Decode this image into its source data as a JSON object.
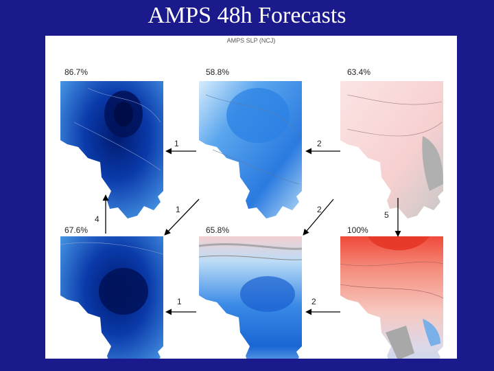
{
  "slide": {
    "title": "AMPS 48h Forecasts"
  },
  "panel": {
    "title": "AMPS SLP (NCJ)"
  },
  "maps": [
    {
      "id": "top-left",
      "percent": "86.7%",
      "palette": "blue"
    },
    {
      "id": "top-middle",
      "percent": "58.8%",
      "palette": "blue"
    },
    {
      "id": "top-right",
      "percent": "63.4%",
      "palette": "red"
    },
    {
      "id": "bottom-left",
      "percent": "67.6%",
      "palette": "blue"
    },
    {
      "id": "bottom-middle",
      "percent": "65.8%",
      "palette": "blue"
    },
    {
      "id": "bottom-right",
      "percent": "100%",
      "palette": "red"
    }
  ],
  "arrow_labels": {
    "top_left_1": "1",
    "top_right_2": "2",
    "mid_left_1": "1",
    "mid_right_2": "2",
    "left_up_4": "4",
    "right_down_5": "5",
    "bottom_left_1": "1",
    "bottom_right_2": "2"
  },
  "colors": {
    "background": "#1a1a8c",
    "blue_dark": "#0a2a9a",
    "blue_mid": "#2a7ae0",
    "blue_light": "#8ec4f0",
    "red_light": "#f7d0d0",
    "red_strong": "#f06050"
  }
}
